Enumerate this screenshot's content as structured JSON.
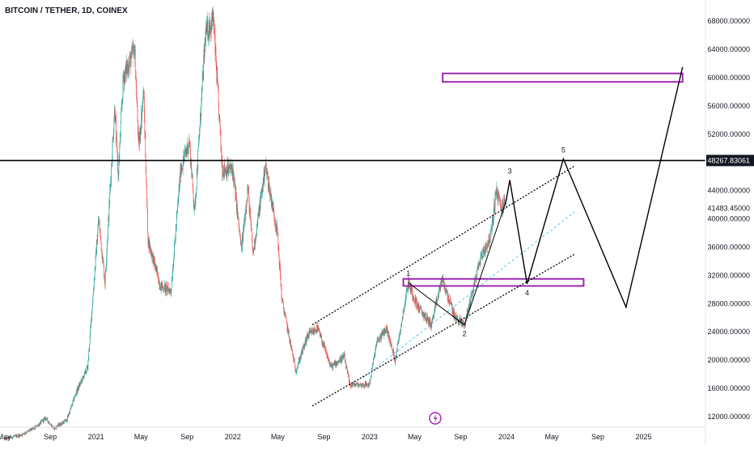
{
  "chart_data": {
    "type": "candlestick",
    "title": "BITCOIN / TETHER, 1D, COINEX",
    "y_axis": {
      "position": "right",
      "ticks": [
        12000,
        16000,
        20000,
        24000,
        28000,
        32000,
        36000,
        40000,
        44000,
        48000,
        52000,
        56000,
        60000,
        64000,
        68000
      ],
      "tick_labels": [
        "12000.00000",
        "16000.00000",
        "20000.00000",
        "24000.00000",
        "28000.00000",
        "32000.00000",
        "36000.00000",
        "40000.00000",
        "44000.00000",
        "48000.00000",
        "52000.00000",
        "56000.00000",
        "60000.00000",
        "64000.00000",
        "68000.00000"
      ],
      "ylim": [
        10500,
        71000
      ]
    },
    "x_axis": {
      "ticks": [
        "2020-05-01",
        "2020-09-01",
        "2021-01-01",
        "2021-05-01",
        "2021-09-01",
        "2022-01-01",
        "2022-05-01",
        "2022-09-01",
        "2023-01-01",
        "2023-05-01",
        "2023-09-01",
        "2024-01-01",
        "2024-05-01",
        "2024-09-01",
        "2025-01-01"
      ],
      "tick_labels": [
        "May",
        "Sep",
        "2021",
        "May",
        "Sep",
        "2022",
        "May",
        "Sep",
        "2023",
        "May",
        "Sep",
        "2024",
        "May",
        "Sep",
        "2025"
      ],
      "xlim": [
        "2020-04-20",
        "2025-06-15"
      ]
    },
    "price_path": [
      [
        "2020-05-01",
        8800
      ],
      [
        "2020-06-15",
        9400
      ],
      [
        "2020-07-25",
        10500
      ],
      [
        "2020-08-20",
        11800
      ],
      [
        "2020-09-10",
        10300
      ],
      [
        "2020-10-15",
        11500
      ],
      [
        "2020-11-10",
        15500
      ],
      [
        "2020-12-10",
        19000
      ],
      [
        "2021-01-08",
        40000
      ],
      [
        "2021-01-25",
        31000
      ],
      [
        "2021-02-20",
        56000
      ],
      [
        "2021-03-01",
        46000
      ],
      [
        "2021-03-15",
        60000
      ],
      [
        "2021-04-14",
        64000
      ],
      [
        "2021-04-25",
        50000
      ],
      [
        "2021-05-08",
        58000
      ],
      [
        "2021-05-20",
        37000
      ],
      [
        "2021-06-22",
        30500
      ],
      [
        "2021-07-20",
        29800
      ],
      [
        "2021-08-15",
        47000
      ],
      [
        "2021-09-07",
        51000
      ],
      [
        "2021-09-21",
        41000
      ],
      [
        "2021-10-20",
        66000
      ],
      [
        "2021-11-10",
        68500
      ],
      [
        "2021-12-04",
        47000
      ],
      [
        "2022-01-01",
        47000
      ],
      [
        "2022-01-24",
        35500
      ],
      [
        "2022-02-10",
        44500
      ],
      [
        "2022-02-24",
        35000
      ],
      [
        "2022-03-29",
        47500
      ],
      [
        "2022-04-30",
        38000
      ],
      [
        "2022-05-12",
        28500
      ],
      [
        "2022-06-18",
        18500
      ],
      [
        "2022-07-20",
        23500
      ],
      [
        "2022-08-15",
        24500
      ],
      [
        "2022-09-20",
        19000
      ],
      [
        "2022-10-25",
        20500
      ],
      [
        "2022-11-09",
        16500
      ],
      [
        "2022-12-31",
        16500
      ],
      [
        "2023-01-20",
        22500
      ],
      [
        "2023-02-15",
        24500
      ],
      [
        "2023-03-10",
        20000
      ],
      [
        "2023-04-14",
        31000
      ],
      [
        "2023-05-10",
        27500
      ],
      [
        "2023-06-15",
        25000
      ],
      [
        "2023-07-13",
        31500
      ],
      [
        "2023-08-17",
        26000
      ],
      [
        "2023-09-11",
        25000
      ],
      [
        "2023-10-24",
        34500
      ],
      [
        "2023-11-20",
        37500
      ],
      [
        "2023-12-05",
        44000
      ],
      [
        "2023-12-18",
        41500
      ],
      [
        "2023-12-31",
        42500
      ]
    ],
    "horizontal_line": {
      "value": 48267.83061,
      "label": "48267.83061"
    },
    "price_marker": {
      "value": 41483.45,
      "label": "41483.45000"
    },
    "zones": [
      {
        "x_start": "2023-04-01",
        "x_end": "2024-07-25",
        "y_low": 30500,
        "y_high": 31500
      },
      {
        "x_start": "2023-07-15",
        "x_end": "2025-04-15",
        "y_low": 59400,
        "y_high": 60600
      }
    ],
    "channel": {
      "upper": [
        [
          "2022-08-01",
          25000
        ],
        [
          "2024-07-01",
          47500
        ]
      ],
      "middle": [
        [
          "2022-12-15",
          17500
        ],
        [
          "2024-07-01",
          41000
        ]
      ],
      "lower": [
        [
          "2022-08-01",
          13500
        ],
        [
          "2024-07-01",
          35000
        ]
      ]
    },
    "wave_projection": [
      [
        "2023-12-31",
        42500
      ],
      [
        "2024-01-10",
        45500
      ],
      [
        "2024-02-25",
        30800
      ],
      [
        "2024-06-01",
        48500
      ],
      [
        "2024-11-15",
        27500
      ],
      [
        "2025-04-15",
        61500
      ]
    ],
    "wave_history": [
      [
        "2023-04-14",
        31000
      ],
      [
        "2023-09-11",
        25000
      ]
    ],
    "wave_labels": [
      {
        "label": "1",
        "x": "2023-04-14",
        "y": 31000,
        "pos": "above"
      },
      {
        "label": "2",
        "x": "2023-09-11",
        "y": 25000,
        "pos": "below"
      },
      {
        "label": "3",
        "x": "2024-01-10",
        "y": 45500,
        "pos": "above"
      },
      {
        "label": "4",
        "x": "2024-02-25",
        "y": 30800,
        "pos": "below"
      },
      {
        "label": "5",
        "x": "2024-06-01",
        "y": 48500,
        "pos": "above"
      }
    ],
    "colors": {
      "up": "#26a69a",
      "down": "#ef5350",
      "zone": "#9c27b0",
      "midline": "#4fc3f7",
      "line": "#000000",
      "label_bg": "#131722"
    },
    "grid": false,
    "legend": "none"
  }
}
